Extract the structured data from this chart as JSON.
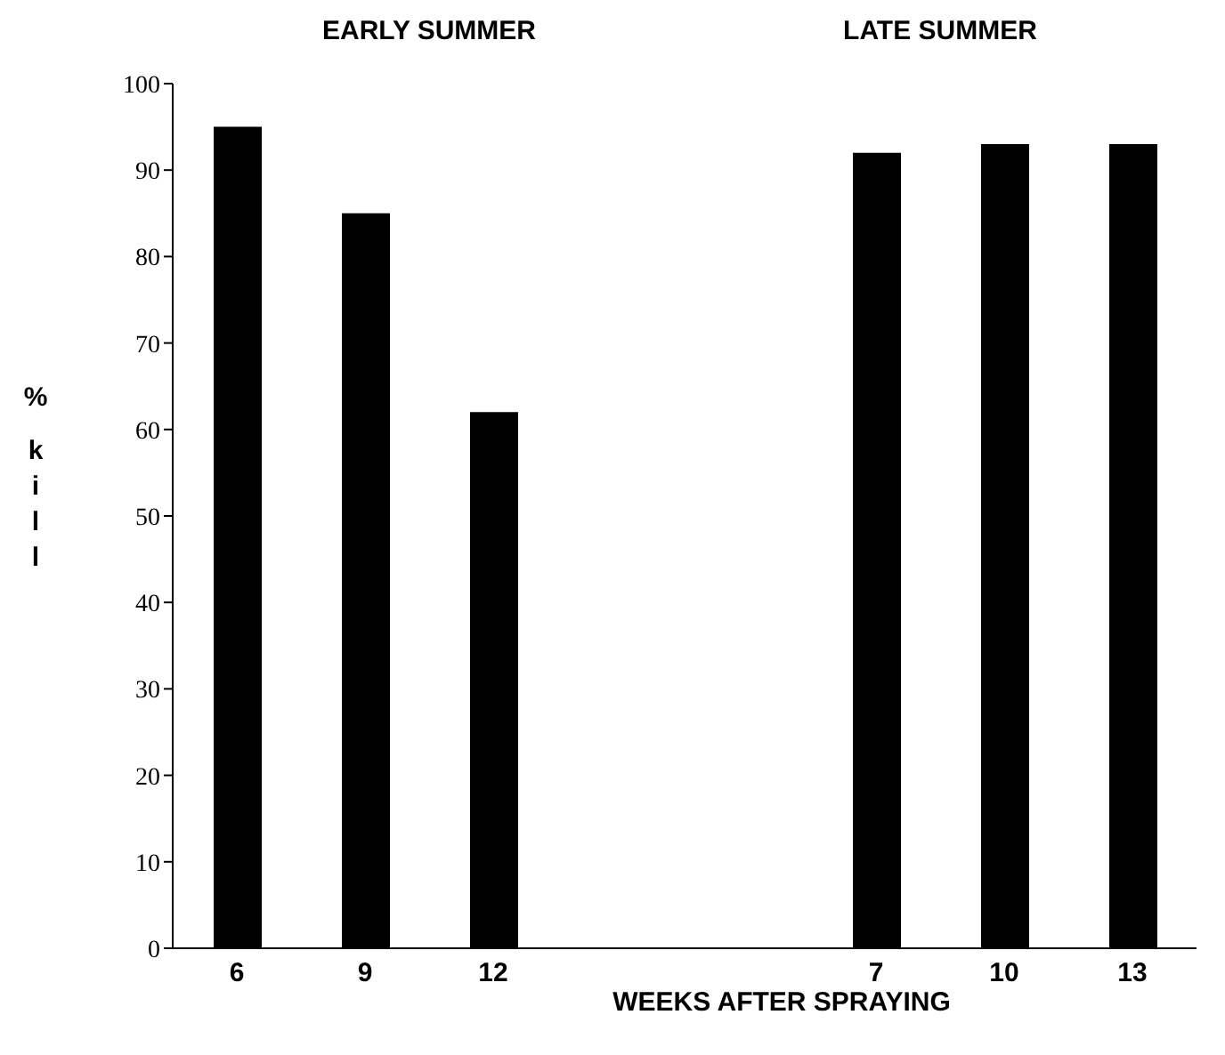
{
  "chart_data": [
    {
      "type": "bar",
      "title": "EARLY SUMMER",
      "ylabel": "% kill",
      "categories": [
        "6",
        "9",
        "12",
        null
      ],
      "values": [
        95,
        85,
        62,
        null
      ],
      "color": "#000000",
      "ylim": [
        0,
        100
      ],
      "yticks": [
        0,
        10,
        20,
        30,
        40,
        50,
        60,
        70,
        80,
        90,
        100
      ],
      "grid": false,
      "legend": false
    },
    {
      "type": "bar",
      "title": "LATE SUMMER",
      "xlabel": "WEEKS AFTER SPRAYING",
      "categories": [
        null,
        "7",
        "10",
        "13"
      ],
      "values": [
        null,
        92,
        93,
        93
      ],
      "color": "#000000",
      "ylim": [
        0,
        100
      ],
      "yticks": [
        0,
        10,
        20,
        30,
        40,
        50,
        60,
        70,
        80,
        90,
        100
      ],
      "tick_labels": "x",
      "grid": false,
      "legend": false
    }
  ]
}
